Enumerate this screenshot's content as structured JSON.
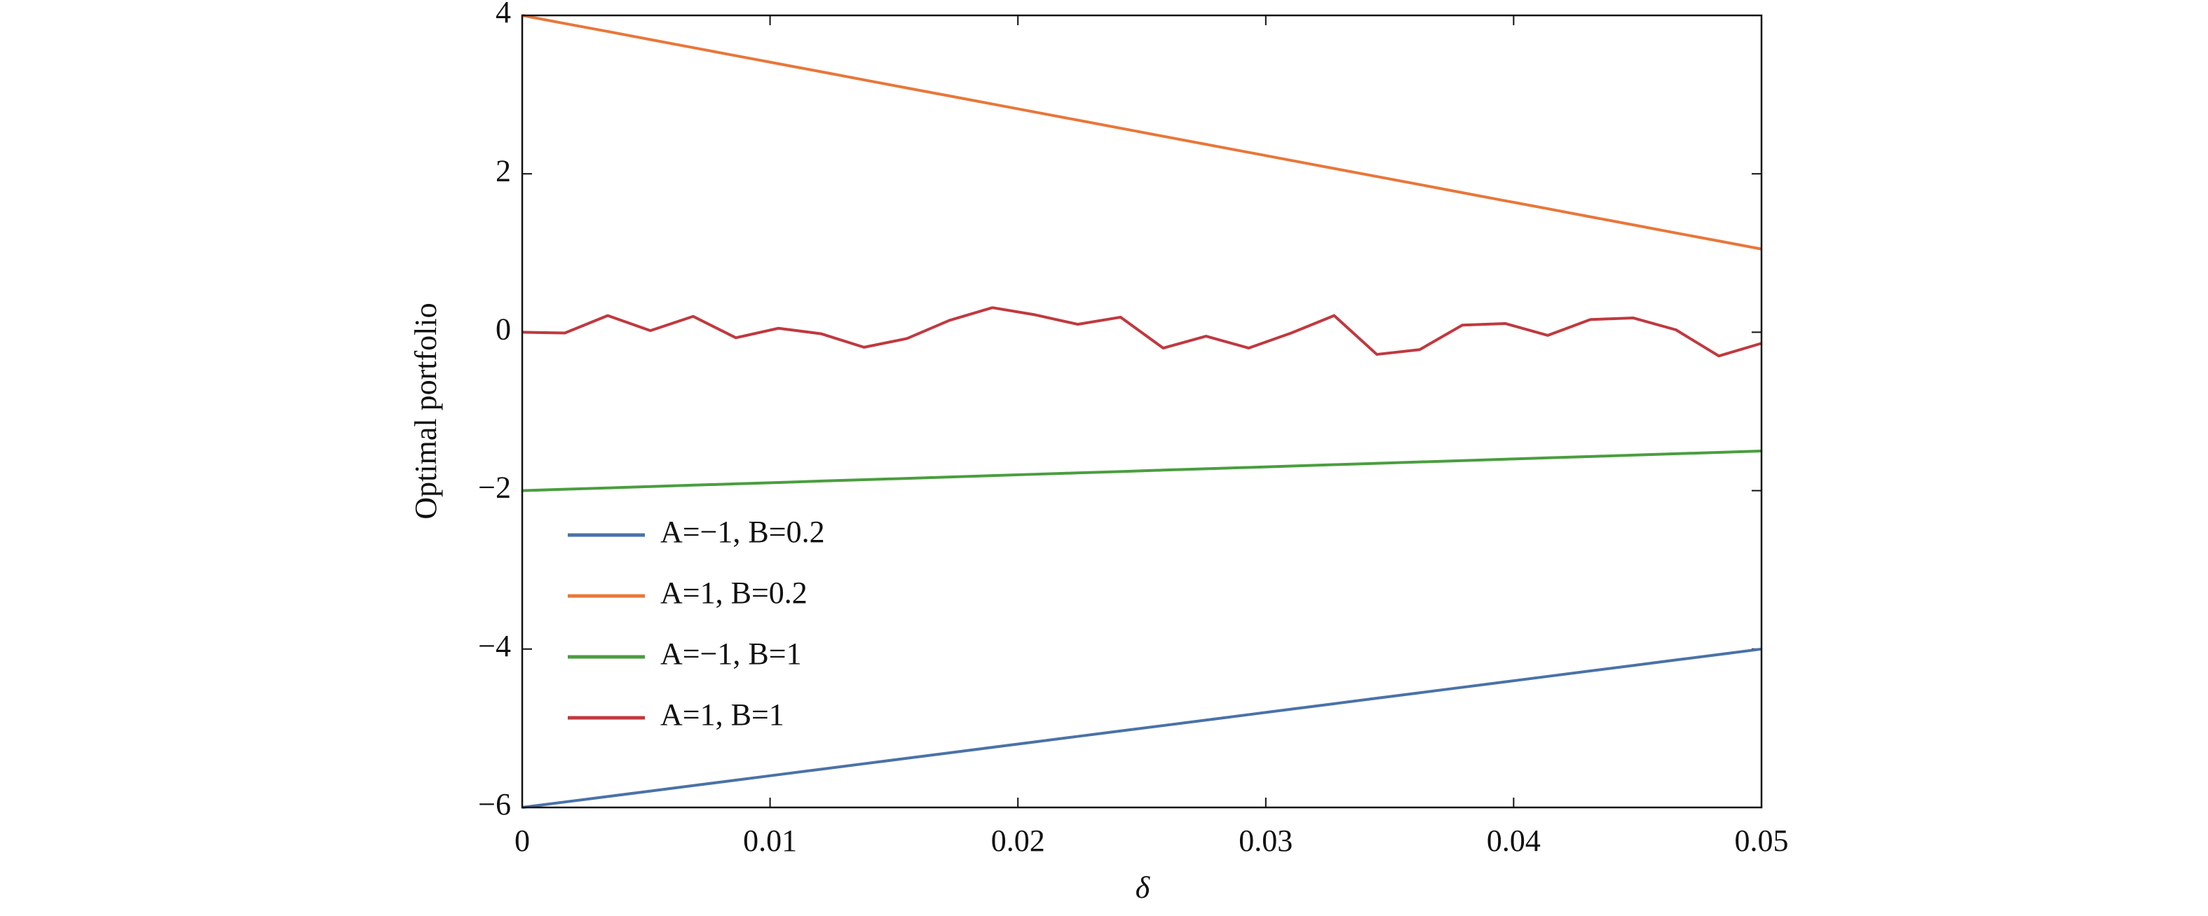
{
  "chart_data": {
    "type": "line",
    "xlabel": "δ",
    "ylabel": "Optimal portfolio",
    "x": [
      0,
      0.00172,
      0.00345,
      0.00517,
      0.0069,
      0.00862,
      0.01034,
      0.01207,
      0.01379,
      0.01552,
      0.01724,
      0.01897,
      0.02069,
      0.02241,
      0.02414,
      0.02586,
      0.02759,
      0.02931,
      0.03103,
      0.03276,
      0.03448,
      0.03621,
      0.03793,
      0.03966,
      0.04138,
      0.0431,
      0.04483,
      0.04655,
      0.04828,
      0.05
    ],
    "series": [
      {
        "name": "A=−1, B=0.2",
        "color": "#4a72a8",
        "values": [
          -6,
          -5.931,
          -5.862,
          -5.793,
          -5.724,
          -5.655,
          -5.586,
          -5.517,
          -5.448,
          -5.379,
          -5.31,
          -5.241,
          -5.172,
          -5.103,
          -5.034,
          -4.966,
          -4.897,
          -4.828,
          -4.759,
          -4.69,
          -4.621,
          -4.552,
          -4.483,
          -4.414,
          -4.345,
          -4.276,
          -4.207,
          -4.138,
          -4.069,
          -4
        ]
      },
      {
        "name": "A=1, B=0.2",
        "color": "#e8773a",
        "values": [
          4,
          3.898,
          3.797,
          3.695,
          3.593,
          3.491,
          3.39,
          3.288,
          3.186,
          3.084,
          2.983,
          2.881,
          2.779,
          2.678,
          2.576,
          2.474,
          2.372,
          2.271,
          2.169,
          2.067,
          1.966,
          1.864,
          1.762,
          1.66,
          1.559,
          1.457,
          1.355,
          1.253,
          1.152,
          1.05
        ]
      },
      {
        "name": "A=−1, B=1",
        "color": "#4a9e3f",
        "values": [
          -2,
          -1.983,
          -1.966,
          -1.948,
          -1.931,
          -1.914,
          -1.897,
          -1.879,
          -1.862,
          -1.845,
          -1.828,
          -1.81,
          -1.793,
          -1.776,
          -1.759,
          -1.741,
          -1.724,
          -1.707,
          -1.69,
          -1.672,
          -1.655,
          -1.638,
          -1.621,
          -1.603,
          -1.586,
          -1.569,
          -1.552,
          -1.534,
          -1.517,
          -1.5
        ]
      },
      {
        "name": "A=1, B=1",
        "color": "#c0393f",
        "values": [
          0,
          -0.01,
          0.21,
          0.02,
          0.2,
          -0.07,
          0.05,
          -0.02,
          -0.19,
          -0.08,
          0.15,
          0.31,
          0.22,
          0.1,
          0.19,
          -0.2,
          -0.05,
          -0.2,
          -0.01,
          0.21,
          -0.28,
          -0.22,
          0.09,
          0.11,
          -0.04,
          0.16,
          0.18,
          0.03,
          -0.3,
          -0.14
        ]
      }
    ],
    "xlim": [
      0,
      0.05
    ],
    "xticks": [
      0,
      0.01,
      0.02,
      0.03,
      0.04,
      0.05
    ],
    "ylim": [
      -6,
      4
    ],
    "yticks": [
      {
        "value": -6,
        "label": "−6"
      },
      {
        "value": -4,
        "label": "−4"
      },
      {
        "value": -2,
        "label": "−2"
      },
      0,
      2,
      4
    ],
    "legend": "lower left"
  }
}
